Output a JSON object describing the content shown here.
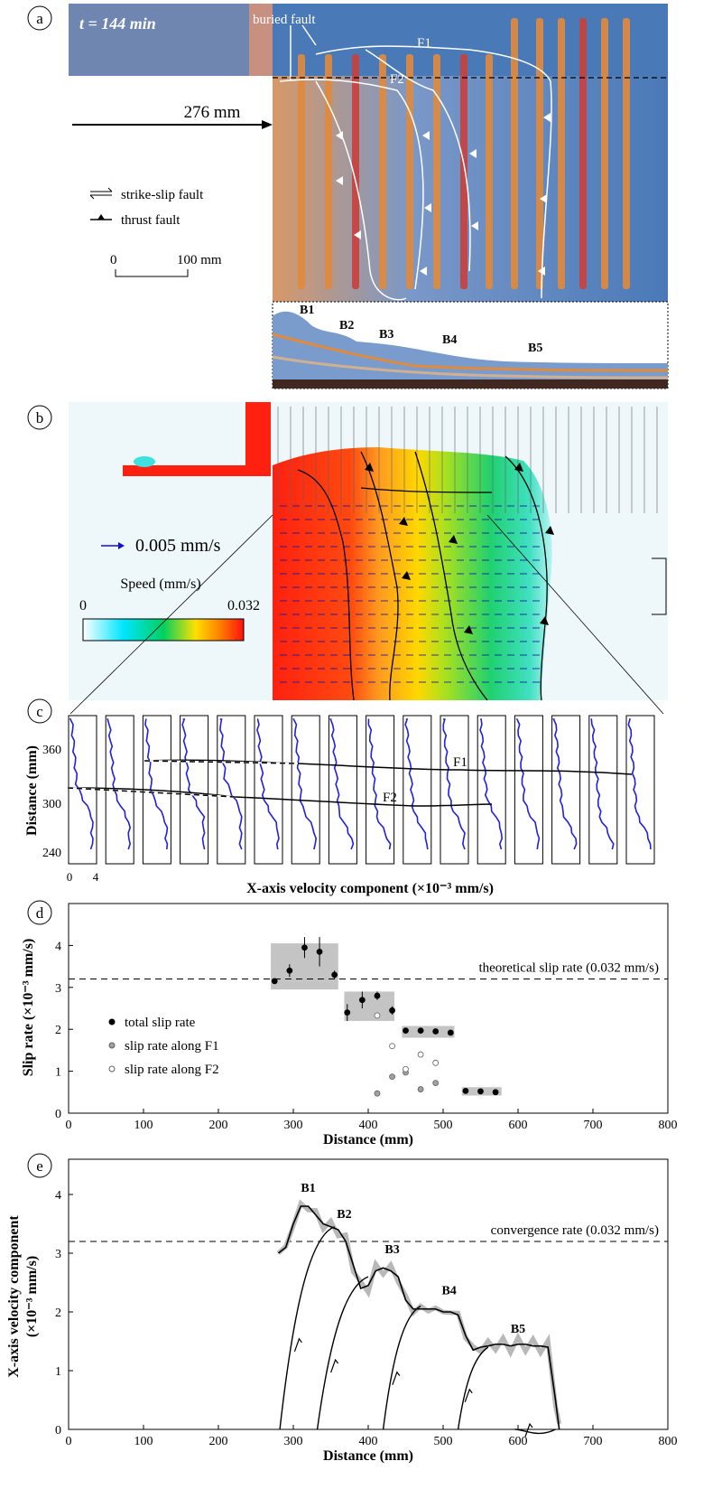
{
  "panels": {
    "a": {
      "label": "a",
      "time_label": "t = 144 min",
      "buried_fault": "buried fault",
      "f1": "F1",
      "f2": "F2",
      "push_label": "276 mm",
      "legend": {
        "strike_slip": "strike-slip fault",
        "thrust": "thrust fault"
      },
      "scale": {
        "start": "0",
        "end": "100 mm"
      },
      "section_labels": [
        "B1",
        "B2",
        "B3",
        "B4",
        "B5"
      ],
      "colors": {
        "blue": "#4a79b8",
        "orange": "#e08a3c",
        "red": "#c8403c"
      }
    },
    "b": {
      "label": "b",
      "vector_label": "0.005 mm/s",
      "colorbar": {
        "title": "Speed (mm/s)",
        "min": "0",
        "max": "0.032"
      },
      "colors": [
        "#ffffff",
        "#00e5ff",
        "#00d060",
        "#ffe000",
        "#ff8000",
        "#ff1010"
      ]
    },
    "c": {
      "label": "c",
      "ylabel": "Distance (mm)",
      "xlabel": "X-axis velocity component (×10⁻³ mm/s)",
      "yticks": [
        "360",
        "300",
        "240"
      ],
      "xticks": [
        "0",
        "4"
      ],
      "f1": "F1",
      "f2": "F2",
      "profile_count": 16
    },
    "d": {
      "label": "d",
      "chart_data": {
        "type": "scatter",
        "xlabel": "Distance (mm)",
        "ylabel": "Slip rate (×10⁻³ mm/s)",
        "xlim": [
          0,
          800
        ],
        "ylim": [
          0,
          5
        ],
        "xticks": [
          0,
          100,
          200,
          300,
          400,
          500,
          600,
          700,
          800
        ],
        "yticks": [
          0,
          1,
          2,
          3,
          4
        ],
        "reference": {
          "y": 3.2,
          "label": "theoretical slip rate (0.032 mm/s)"
        },
        "series": [
          {
            "name": "total slip rate",
            "color": "#000000",
            "points": [
              [
                275,
                3.15
              ],
              [
                295,
                3.4
              ],
              [
                315,
                3.95
              ],
              [
                335,
                3.85
              ],
              [
                355,
                3.3
              ],
              [
                372,
                2.4
              ],
              [
                392,
                2.7
              ],
              [
                412,
                2.8
              ],
              [
                432,
                2.45
              ],
              [
                450,
                1.97
              ],
              [
                470,
                1.97
              ],
              [
                490,
                1.95
              ],
              [
                510,
                1.92
              ],
              [
                530,
                0.53
              ],
              [
                550,
                0.52
              ],
              [
                570,
                0.5
              ]
            ],
            "errors": [
              0,
              0.15,
              0.25,
              0.35,
              0.1,
              0.2,
              0.2,
              0.1,
              0.1,
              0,
              0,
              0,
              0,
              0,
              0,
              0
            ]
          },
          {
            "name": "slip rate along F1",
            "color": "#a0a0a0",
            "points": [
              [
                412,
                0.47
              ],
              [
                432,
                0.87
              ],
              [
                450,
                0.97
              ],
              [
                470,
                0.57
              ],
              [
                490,
                0.72
              ]
            ]
          },
          {
            "name": "slip rate along F2",
            "color": "#ffffff",
            "points": [
              [
                412,
                2.33
              ],
              [
                432,
                1.6
              ],
              [
                450,
                1.05
              ],
              [
                470,
                1.4
              ],
              [
                490,
                1.2
              ]
            ]
          }
        ],
        "shaded_boxes": [
          {
            "x": [
              270,
              360
            ],
            "y": [
              2.95,
              4.05
            ]
          },
          {
            "x": [
              368,
              435
            ],
            "y": [
              2.2,
              2.9
            ]
          },
          {
            "x": [
              445,
              515
            ],
            "y": [
              1.8,
              2.08
            ]
          },
          {
            "x": [
              525,
              578
            ],
            "y": [
              0.42,
              0.62
            ]
          }
        ]
      }
    },
    "e": {
      "label": "e",
      "chart_data": {
        "type": "line",
        "xlabel": "Distance (mm)",
        "ylabel": "X-axis velocity component",
        "ylabel2": "(×10⁻³ mm/s)",
        "xlim": [
          0,
          800
        ],
        "ylim": [
          0,
          4.6
        ],
        "xticks": [
          0,
          100,
          200,
          300,
          400,
          500,
          600,
          700,
          800
        ],
        "yticks": [
          0,
          1,
          2,
          3,
          4
        ],
        "reference": {
          "y": 3.2,
          "label": "convergence rate (0.032 mm/s)"
        },
        "x": [
          280,
          290,
          300,
          310,
          320,
          330,
          340,
          350,
          360,
          370,
          380,
          390,
          400,
          410,
          420,
          430,
          440,
          450,
          460,
          470,
          480,
          490,
          500,
          510,
          520,
          530,
          540,
          550,
          560,
          570,
          580,
          590,
          600,
          610,
          620,
          630,
          640,
          650,
          655
        ],
        "y": [
          3.0,
          3.1,
          3.5,
          3.8,
          3.8,
          3.65,
          3.5,
          3.45,
          3.4,
          3.2,
          2.8,
          2.4,
          2.45,
          2.7,
          2.75,
          2.7,
          2.6,
          2.2,
          2.05,
          2.05,
          2.05,
          2.05,
          2.0,
          2.0,
          1.95,
          1.6,
          1.35,
          1.4,
          1.42,
          1.45,
          1.45,
          1.42,
          1.45,
          1.45,
          1.42,
          1.42,
          1.4,
          0.5,
          0.0
        ],
        "peak_labels": [
          {
            "text": "B1",
            "x": 320,
            "y": 4.05
          },
          {
            "text": "B2",
            "x": 368,
            "y": 3.6
          },
          {
            "text": "B3",
            "x": 432,
            "y": 3.0
          },
          {
            "text": "B4",
            "x": 508,
            "y": 2.3
          },
          {
            "text": "B5",
            "x": 600,
            "y": 1.65
          }
        ],
        "thrust_curves": [
          {
            "x0": 282,
            "x1": 355,
            "ytop": 3.45
          },
          {
            "x0": 332,
            "x1": 400,
            "ytop": 2.6
          },
          {
            "x0": 420,
            "x1": 470,
            "ytop": 2.1
          },
          {
            "x0": 520,
            "x1": 560,
            "ytop": 1.4
          },
          {
            "x0": 596,
            "x1": 650,
            "ytop": 0.0
          }
        ]
      }
    }
  }
}
